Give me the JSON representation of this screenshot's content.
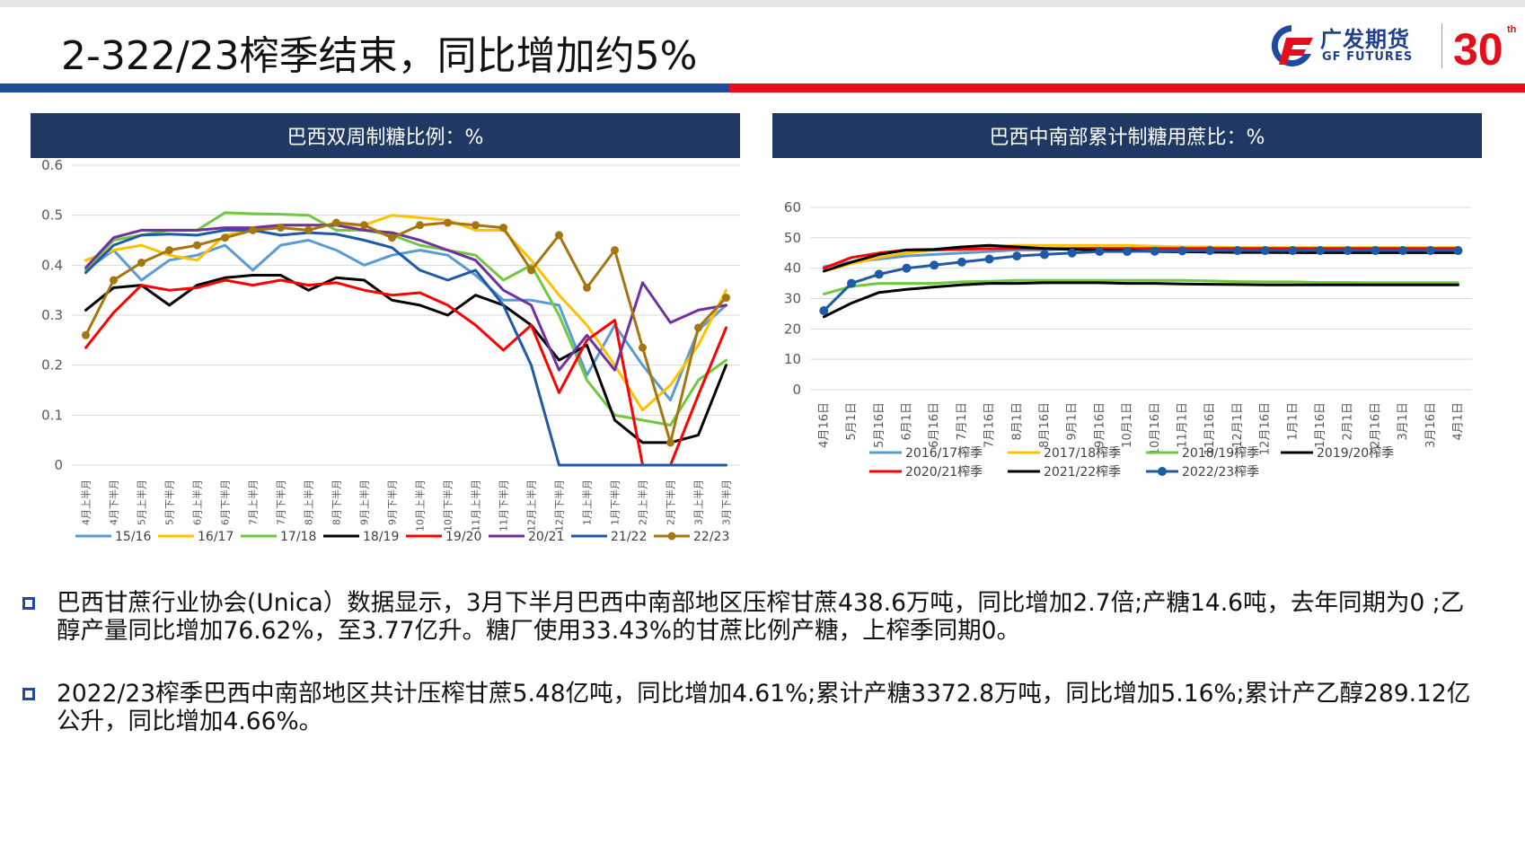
{
  "slide": {
    "title": "2-322/23榨季结束，同比增加约5%",
    "logo_cn": "广发期货",
    "logo_en": "GF FUTURES",
    "anniversary": "30"
  },
  "colors": {
    "navy": "#1f3864",
    "blue": "#1f4aa0",
    "red": "#e3101b"
  },
  "chart_data": [
    {
      "type": "line",
      "title": "巴西双周制糖比例：%",
      "ylim": [
        0,
        0.6
      ],
      "yticks": [
        "0",
        "0.1",
        "0.2",
        "0.3",
        "0.4",
        "0.5",
        "0.6"
      ],
      "categories": [
        "4月上半月",
        "4月下半月",
        "5月上半月",
        "5月下半月",
        "6月上半月",
        "6月下半月",
        "7月上半月",
        "7月下半月",
        "8月上半月",
        "8月下半月",
        "9月上半月",
        "9月下半月",
        "10月上半月",
        "10月下半月",
        "11月上半月",
        "11月下半月",
        "12月上半月",
        "12月下半月",
        "1月上半月",
        "1月下半月",
        "2月上半月",
        "2月下半月",
        "3月上半月",
        "3月下半月"
      ],
      "grid": true,
      "legend": "bottom",
      "series": [
        {
          "name": "15/16",
          "color": "#5b9bd5",
          "marker": false,
          "values": [
            0.39,
            0.43,
            0.37,
            0.41,
            0.42,
            0.44,
            0.39,
            0.44,
            0.45,
            0.43,
            0.4,
            0.42,
            0.43,
            0.42,
            0.38,
            0.33,
            0.33,
            0.32,
            0.18,
            0.28,
            0.2,
            0.13,
            0.27,
            0.32
          ]
        },
        {
          "name": "16/17",
          "color": "#ffc000",
          "marker": false,
          "values": [
            0.41,
            0.43,
            0.44,
            0.42,
            0.41,
            0.46,
            0.47,
            0.48,
            0.48,
            0.48,
            0.48,
            0.5,
            0.495,
            0.49,
            0.47,
            0.47,
            0.41,
            0.34,
            0.28,
            0.2,
            0.11,
            0.16,
            0.24,
            0.35
          ]
        },
        {
          "name": "17/18",
          "color": "#70c840",
          "marker": false,
          "values": [
            0.39,
            0.45,
            0.46,
            0.47,
            0.47,
            0.505,
            0.503,
            0.502,
            0.5,
            0.47,
            0.47,
            0.46,
            0.44,
            0.43,
            0.42,
            0.37,
            0.4,
            0.3,
            0.17,
            0.1,
            0.09,
            0.08,
            0.17,
            0.21
          ]
        },
        {
          "name": "18/19",
          "color": "#000000",
          "marker": false,
          "values": [
            0.31,
            0.355,
            0.36,
            0.32,
            0.36,
            0.375,
            0.38,
            0.38,
            0.35,
            0.375,
            0.37,
            0.33,
            0.32,
            0.3,
            0.34,
            0.32,
            0.28,
            0.21,
            0.24,
            0.09,
            0.045,
            0.045,
            0.06,
            0.2
          ]
        },
        {
          "name": "19/20",
          "color": "#ff0000",
          "marker": false,
          "values": [
            0.235,
            0.305,
            0.36,
            0.35,
            0.355,
            0.37,
            0.36,
            0.37,
            0.36,
            0.365,
            0.35,
            0.34,
            0.345,
            0.32,
            0.28,
            0.23,
            0.28,
            0.145,
            0.25,
            0.29,
            0.0,
            0.0,
            0.14,
            0.275
          ]
        },
        {
          "name": "20/21",
          "color": "#7030a0",
          "marker": false,
          "values": [
            0.395,
            0.455,
            0.47,
            0.47,
            0.47,
            0.475,
            0.475,
            0.48,
            0.48,
            0.48,
            0.47,
            0.465,
            0.45,
            0.43,
            0.41,
            0.35,
            0.32,
            0.19,
            0.26,
            0.19,
            0.365,
            0.285,
            0.31,
            0.32
          ]
        },
        {
          "name": "21/22",
          "color": "#1f5aa6",
          "marker": false,
          "values": [
            0.385,
            0.44,
            0.46,
            0.462,
            0.46,
            0.47,
            0.47,
            0.46,
            0.465,
            0.462,
            0.45,
            0.435,
            0.39,
            0.37,
            0.39,
            0.32,
            0.2,
            0.0,
            0.0,
            0.0,
            0.0,
            0.0,
            0.0,
            0.0
          ]
        },
        {
          "name": "22/23",
          "color": "#a5750f",
          "marker": true,
          "values": [
            0.26,
            0.37,
            0.405,
            0.43,
            0.44,
            0.455,
            0.47,
            0.475,
            0.47,
            0.485,
            0.48,
            0.455,
            0.48,
            0.485,
            0.48,
            0.475,
            0.39,
            0.46,
            0.355,
            0.43,
            0.235,
            0.045,
            0.275,
            0.335
          ]
        }
      ]
    },
    {
      "type": "line",
      "title": "巴西中南部累计制糖用蔗比：%",
      "ylim": [
        0,
        60
      ],
      "yticks": [
        "0",
        "10",
        "20",
        "30",
        "40",
        "50",
        "60"
      ],
      "categories": [
        "4月16日",
        "5月1日",
        "5月16日",
        "6月1日",
        "6月16日",
        "7月1日",
        "7月16日",
        "8月1日",
        "8月16日",
        "9月1日",
        "9月16日",
        "10月1日",
        "10月16日",
        "11月1日",
        "11月16日",
        "12月1日",
        "12月16日",
        "1月1日",
        "1月16日",
        "2月1日",
        "2月16日",
        "3月1日",
        "3月16日",
        "4月1日"
      ],
      "grid": true,
      "legend": "bottom",
      "series": [
        {
          "name": "2016/17榨季",
          "color": "#5b9bd5",
          "marker": false,
          "values": [
            40.5,
            42,
            43,
            44,
            44.5,
            45,
            45.5,
            46,
            46,
            46.5,
            46.5,
            46.5,
            46.5,
            46.5,
            46.5,
            46.5,
            46.5,
            46.5,
            46.5,
            46.5,
            46.5,
            46.5,
            46.5,
            46.5
          ]
        },
        {
          "name": "2017/18榨季",
          "color": "#ffc000",
          "marker": false,
          "values": [
            39,
            41.5,
            43.5,
            45,
            46,
            46.5,
            47,
            47.5,
            47.5,
            47.5,
            47.5,
            47.5,
            47.2,
            47,
            47,
            46.8,
            46.8,
            46.8,
            46.8,
            46.8,
            46.8,
            46.8,
            46.8,
            46.8
          ]
        },
        {
          "name": "2018/19榨季",
          "color": "#70c840",
          "marker": false,
          "values": [
            31.5,
            34,
            35,
            35,
            35,
            35.5,
            35.7,
            36,
            36,
            36,
            36,
            36,
            36,
            36,
            35.8,
            35.6,
            35.5,
            35.5,
            35.3,
            35.3,
            35.2,
            35.2,
            35.2,
            35.2
          ]
        },
        {
          "name": "2019/20榨季",
          "color": "#000000",
          "marker": false,
          "values": [
            24,
            28.5,
            32,
            33,
            33.8,
            34.5,
            35,
            35,
            35.2,
            35.2,
            35.2,
            35,
            35,
            34.8,
            34.7,
            34.6,
            34.5,
            34.5,
            34.5,
            34.5,
            34.5,
            34.5,
            34.5,
            34.5
          ]
        },
        {
          "name": "2020/21榨季",
          "color": "#ff0000",
          "marker": false,
          "values": [
            40,
            43.5,
            45,
            46,
            46,
            46.2,
            46.4,
            46.5,
            46.5,
            46.5,
            46.5,
            46.5,
            46.5,
            46.5,
            46.5,
            46.5,
            46.5,
            46.5,
            46.5,
            46.5,
            46.5,
            46.5,
            46.5,
            46.5
          ]
        },
        {
          "name": "2021/22榨季",
          "color": "#000000",
          "marker": false,
          "values": [
            39,
            42,
            44.5,
            46,
            46.2,
            47,
            47.5,
            47,
            46.5,
            46.2,
            46,
            45.8,
            45.5,
            45.4,
            45.3,
            45.2,
            45.2,
            45.1,
            45.1,
            45.1,
            45.1,
            45.1,
            45.1,
            45.1
          ]
        },
        {
          "name": "2022/23榨季",
          "color": "#1f5aa6",
          "marker": true,
          "values": [
            26,
            35,
            38,
            40,
            41,
            42,
            43,
            44,
            44.5,
            45,
            45.5,
            45.5,
            45.6,
            45.7,
            45.8,
            45.8,
            45.8,
            45.8,
            45.8,
            45.8,
            45.8,
            45.8,
            45.8,
            45.8
          ]
        }
      ]
    }
  ],
  "bullets": [
    "巴西甘蔗行业协会(Unica）数据显示，3月下半月巴西中南部地区压榨甘蔗438.6万吨，同比增加2.7倍;产糖14.6吨，去年同期为0 ;乙醇产量同比增加76.62%，至3.77亿升。糖厂使用33.43%的甘蔗比例产糖，上榨季同期0。",
    "2022/23榨季巴西中南部地区共计压榨甘蔗5.48亿吨，同比增加4.61%;累计产糖3372.8万吨，同比增加5.16%;累计产乙醇289.12亿公升，同比增加4.66%。"
  ]
}
